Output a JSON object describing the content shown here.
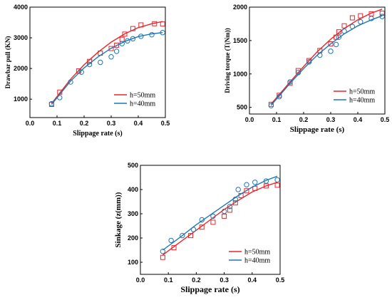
{
  "chart_data": [
    {
      "type": "scatter",
      "xlabel": "Slippage rate (s)",
      "ylabel": "Drawbar pull (KN)",
      "xlim": [
        0.0,
        0.5
      ],
      "ylim": [
        400,
        4000
      ],
      "xticks": [
        "0.0",
        "0.1",
        "0.2",
        "0.3",
        "0.4",
        "0.5"
      ],
      "yticks": [
        "1000",
        "2000",
        "3000",
        "4000"
      ],
      "legend_position": "lower-right",
      "series": [
        {
          "name": "h=50mm",
          "marker": "square",
          "color": "#e8262a",
          "points": [
            [
              0.08,
              830
            ],
            [
              0.11,
              1230
            ],
            [
              0.18,
              1920
            ],
            [
              0.22,
              2230
            ],
            [
              0.26,
              2500
            ],
            [
              0.3,
              2650
            ],
            [
              0.32,
              2760
            ],
            [
              0.34,
              2950
            ],
            [
              0.35,
              3120
            ],
            [
              0.38,
              3300
            ],
            [
              0.41,
              3420
            ],
            [
              0.46,
              3460
            ],
            [
              0.49,
              3450
            ]
          ],
          "fit": [
            [
              0.08,
              860
            ],
            [
              0.15,
              1650
            ],
            [
              0.2,
              2120
            ],
            [
              0.25,
              2520
            ],
            [
              0.3,
              2860
            ],
            [
              0.35,
              3130
            ],
            [
              0.4,
              3330
            ],
            [
              0.45,
              3460
            ],
            [
              0.49,
              3530
            ]
          ]
        },
        {
          "name": "h=40mm",
          "marker": "circle",
          "color": "#1f77b4",
          "points": [
            [
              0.08,
              850
            ],
            [
              0.11,
              1050
            ],
            [
              0.15,
              1560
            ],
            [
              0.19,
              1880
            ],
            [
              0.22,
              2130
            ],
            [
              0.26,
              2200
            ],
            [
              0.3,
              2380
            ],
            [
              0.32,
              2560
            ],
            [
              0.34,
              2810
            ],
            [
              0.36,
              2900
            ],
            [
              0.38,
              2970
            ],
            [
              0.41,
              3050
            ],
            [
              0.45,
              3100
            ],
            [
              0.49,
              3170
            ]
          ],
          "fit": [
            [
              0.08,
              830
            ],
            [
              0.15,
              1590
            ],
            [
              0.2,
              2020
            ],
            [
              0.25,
              2370
            ],
            [
              0.3,
              2660
            ],
            [
              0.35,
              2880
            ],
            [
              0.4,
              3040
            ],
            [
              0.45,
              3130
            ],
            [
              0.49,
              3170
            ]
          ]
        }
      ]
    },
    {
      "type": "scatter",
      "xlabel": "Slippage rate (s)",
      "ylabel": "Driving torque (T(Nm))",
      "xlim": [
        0.0,
        0.5
      ],
      "ylim": [
        400,
        2000
      ],
      "xticks": [
        "0.0",
        "0.1",
        "0.2",
        "0.3",
        "0.4",
        "0.5"
      ],
      "yticks": [
        "500",
        "1000",
        "1500",
        "2000"
      ],
      "legend_position": "lower-right",
      "series": [
        {
          "name": "h=50mm",
          "marker": "square",
          "color": "#e8262a",
          "points": [
            [
              0.08,
              545
            ],
            [
              0.11,
              680
            ],
            [
              0.15,
              860
            ],
            [
              0.18,
              1050
            ],
            [
              0.22,
              1200
            ],
            [
              0.26,
              1350
            ],
            [
              0.3,
              1450
            ],
            [
              0.32,
              1550
            ],
            [
              0.33,
              1630
            ],
            [
              0.35,
              1720
            ],
            [
              0.38,
              1840
            ],
            [
              0.41,
              1870
            ],
            [
              0.45,
              1900
            ],
            [
              0.49,
              1910
            ]
          ],
          "fit": [
            [
              0.08,
              550
            ],
            [
              0.15,
              880
            ],
            [
              0.2,
              1110
            ],
            [
              0.25,
              1330
            ],
            [
              0.3,
              1520
            ],
            [
              0.35,
              1680
            ],
            [
              0.4,
              1810
            ],
            [
              0.45,
              1910
            ],
            [
              0.49,
              1970
            ]
          ]
        },
        {
          "name": "h=40mm",
          "marker": "circle",
          "color": "#1f77b4",
          "points": [
            [
              0.08,
              525
            ],
            [
              0.11,
              660
            ],
            [
              0.15,
              880
            ],
            [
              0.18,
              1020
            ],
            [
              0.22,
              1180
            ],
            [
              0.26,
              1280
            ],
            [
              0.3,
              1340
            ],
            [
              0.32,
              1440
            ],
            [
              0.33,
              1550
            ],
            [
              0.35,
              1640
            ],
            [
              0.38,
              1710
            ],
            [
              0.41,
              1780
            ],
            [
              0.45,
              1830
            ],
            [
              0.49,
              1860
            ]
          ],
          "fit": [
            [
              0.08,
              530
            ],
            [
              0.15,
              860
            ],
            [
              0.2,
              1080
            ],
            [
              0.25,
              1280
            ],
            [
              0.3,
              1450
            ],
            [
              0.35,
              1600
            ],
            [
              0.4,
              1720
            ],
            [
              0.45,
              1810
            ],
            [
              0.49,
              1870
            ]
          ]
        }
      ]
    },
    {
      "type": "scatter",
      "xlabel": "Slippage rate (s)",
      "ylabel": "Sinkage (z(mm))",
      "xlim": [
        0.0,
        0.5
      ],
      "ylim": [
        50,
        500
      ],
      "xticks": [
        "0.0",
        "0.1",
        "0.2",
        "0.3",
        "0.4",
        "0.5"
      ],
      "yticks": [
        "100",
        "200",
        "300",
        "400",
        "500"
      ],
      "legend_position": "lower-right",
      "series": [
        {
          "name": "h=50mm",
          "marker": "square",
          "color": "#e8262a",
          "points": [
            [
              0.08,
              120
            ],
            [
              0.12,
              160
            ],
            [
              0.18,
              210
            ],
            [
              0.22,
              245
            ],
            [
              0.26,
              265
            ],
            [
              0.3,
              290
            ],
            [
              0.32,
              315
            ],
            [
              0.34,
              345
            ],
            [
              0.36,
              375
            ],
            [
              0.38,
              395
            ],
            [
              0.41,
              405
            ],
            [
              0.45,
              415
            ],
            [
              0.49,
              418
            ]
          ],
          "fit": [
            [
              0.08,
              130
            ],
            [
              0.15,
              190
            ],
            [
              0.2,
              232
            ],
            [
              0.25,
              275
            ],
            [
              0.3,
              318
            ],
            [
              0.35,
              355
            ],
            [
              0.4,
              390
            ],
            [
              0.45,
              415
            ],
            [
              0.49,
              430
            ]
          ]
        },
        {
          "name": "h=40mm",
          "marker": "circle",
          "color": "#1f77b4",
          "points": [
            [
              0.08,
              145
            ],
            [
              0.11,
              190
            ],
            [
              0.15,
              210
            ],
            [
              0.19,
              235
            ],
            [
              0.22,
              275
            ],
            [
              0.26,
              290
            ],
            [
              0.3,
              310
            ],
            [
              0.32,
              330
            ],
            [
              0.34,
              360
            ],
            [
              0.35,
              400
            ],
            [
              0.38,
              420
            ],
            [
              0.41,
              430
            ],
            [
              0.45,
              435
            ],
            [
              0.49,
              440
            ]
          ],
          "fit": [
            [
              0.08,
              150
            ],
            [
              0.15,
              210
            ],
            [
              0.2,
              255
            ],
            [
              0.25,
              295
            ],
            [
              0.3,
              335
            ],
            [
              0.35,
              375
            ],
            [
              0.4,
              410
            ],
            [
              0.45,
              438
            ],
            [
              0.49,
              455
            ]
          ]
        }
      ]
    }
  ]
}
